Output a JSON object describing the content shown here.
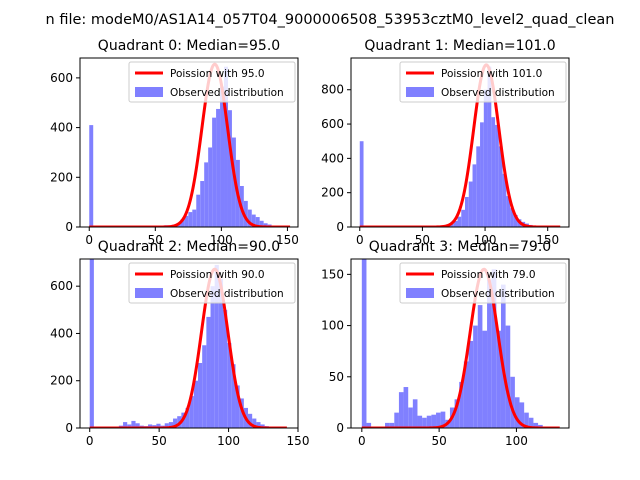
{
  "figure_title": "n file: modeM0/AS1A14_057T04_9000006508_53953cztM0_level2_quad_clean",
  "colors": {
    "hist": "#8080ff",
    "curve": "#ff0000"
  },
  "chart_data": [
    {
      "type": "histogram_with_line",
      "title": "Quadrant 0: Median=95.0",
      "median": 95.0,
      "xlim": [
        -7,
        158
      ],
      "ylim": [
        0,
        680
      ],
      "xticks": [
        0,
        50,
        100,
        150
      ],
      "yticks": [
        0,
        200,
        400,
        600
      ],
      "legend": {
        "position": "top-right",
        "line_label": "Poission with 95.0",
        "hist_label": "Observed distribution"
      },
      "bin_width": 3,
      "bars": [
        [
          0,
          410
        ],
        [
          42,
          5
        ],
        [
          45,
          3
        ],
        [
          48,
          5
        ],
        [
          51,
          4
        ],
        [
          54,
          6
        ],
        [
          57,
          7
        ],
        [
          60,
          6
        ],
        [
          63,
          10
        ],
        [
          66,
          15
        ],
        [
          69,
          30
        ],
        [
          72,
          45
        ],
        [
          75,
          60
        ],
        [
          78,
          70
        ],
        [
          81,
          130
        ],
        [
          84,
          185
        ],
        [
          87,
          260
        ],
        [
          90,
          320
        ],
        [
          93,
          440
        ],
        [
          96,
          475
        ],
        [
          99,
          565
        ],
        [
          102,
          645
        ],
        [
          105,
          470
        ],
        [
          108,
          360
        ],
        [
          111,
          270
        ],
        [
          114,
          165
        ],
        [
          117,
          105
        ],
        [
          120,
          70
        ],
        [
          123,
          50
        ],
        [
          126,
          40
        ],
        [
          129,
          25
        ],
        [
          132,
          15
        ],
        [
          135,
          10
        ],
        [
          138,
          5
        ],
        [
          141,
          4
        ],
        [
          144,
          3
        ],
        [
          147,
          2
        ],
        [
          150,
          1
        ]
      ],
      "curve": {
        "x_max": 152,
        "peak": 655
      }
    },
    {
      "type": "histogram_with_line",
      "title": "Quadrant 1: Median=101.0",
      "median": 101.0,
      "xlim": [
        -7,
        167
      ],
      "ylim": [
        0,
        985
      ],
      "xticks": [
        0,
        50,
        100,
        150
      ],
      "yticks": [
        0,
        200,
        400,
        600,
        800
      ],
      "legend": {
        "position": "top-right",
        "line_label": "Poission with 101.0",
        "hist_label": "Observed distribution"
      },
      "bin_width": 3,
      "bars": [
        [
          0,
          500
        ],
        [
          60,
          5
        ],
        [
          63,
          8
        ],
        [
          66,
          10
        ],
        [
          69,
          15
        ],
        [
          72,
          25
        ],
        [
          75,
          35
        ],
        [
          78,
          60
        ],
        [
          81,
          100
        ],
        [
          84,
          175
        ],
        [
          87,
          265
        ],
        [
          90,
          365
        ],
        [
          93,
          470
        ],
        [
          96,
          610
        ],
        [
          99,
          800
        ],
        [
          102,
          935
        ],
        [
          105,
          640
        ],
        [
          108,
          595
        ],
        [
          111,
          470
        ],
        [
          114,
          310
        ],
        [
          117,
          180
        ],
        [
          120,
          110
        ],
        [
          123,
          70
        ],
        [
          126,
          45
        ],
        [
          129,
          30
        ],
        [
          132,
          20
        ],
        [
          135,
          12
        ],
        [
          138,
          8
        ],
        [
          141,
          5
        ],
        [
          144,
          3
        ]
      ],
      "curve": {
        "x_max": 160,
        "peak": 945
      }
    },
    {
      "type": "histogram_with_line",
      "title": "Quadrant 2: Median=90.0",
      "median": 90.0,
      "xlim": [
        -7,
        150
      ],
      "ylim": [
        0,
        715
      ],
      "xticks": [
        0,
        50,
        100,
        150
      ],
      "yticks": [
        0,
        200,
        400,
        600
      ],
      "legend": {
        "position": "top-right",
        "line_label": "Poission with 90.0",
        "hist_label": "Observed distribution"
      },
      "bin_width": 3,
      "bars": [
        [
          0,
          715
        ],
        [
          21,
          10
        ],
        [
          24,
          25
        ],
        [
          27,
          15
        ],
        [
          30,
          30
        ],
        [
          33,
          20
        ],
        [
          36,
          10
        ],
        [
          39,
          8
        ],
        [
          42,
          15
        ],
        [
          45,
          12
        ],
        [
          48,
          18
        ],
        [
          51,
          10
        ],
        [
          54,
          20
        ],
        [
          57,
          25
        ],
        [
          60,
          40
        ],
        [
          63,
          50
        ],
        [
          66,
          65
        ],
        [
          69,
          85
        ],
        [
          72,
          135
        ],
        [
          75,
          200
        ],
        [
          78,
          275
        ],
        [
          81,
          350
        ],
        [
          84,
          470
        ],
        [
          87,
          600
        ],
        [
          90,
          690
        ],
        [
          93,
          630
        ],
        [
          96,
          500
        ],
        [
          99,
          360
        ],
        [
          102,
          270
        ],
        [
          105,
          180
        ],
        [
          108,
          125
        ],
        [
          111,
          85
        ],
        [
          114,
          60
        ],
        [
          117,
          40
        ],
        [
          120,
          25
        ],
        [
          123,
          15
        ],
        [
          126,
          8
        ],
        [
          129,
          5
        ]
      ],
      "curve": {
        "x_max": 142,
        "peak": 672
      }
    },
    {
      "type": "histogram_with_line",
      "title": "Quadrant 3: Median=79.0",
      "median": 79.0,
      "xlim": [
        -7,
        134
      ],
      "ylim": [
        0,
        165
      ],
      "xticks": [
        0,
        50,
        100
      ],
      "yticks": [
        0,
        50,
        100,
        150
      ],
      "legend": {
        "position": "top-right",
        "line_label": "Poission with 79.0",
        "hist_label": "Observed distribution"
      },
      "bin_width": 3,
      "bars": [
        [
          0,
          165
        ],
        [
          3,
          5
        ],
        [
          15,
          5
        ],
        [
          18,
          5
        ],
        [
          21,
          15
        ],
        [
          24,
          35
        ],
        [
          27,
          40
        ],
        [
          30,
          20
        ],
        [
          33,
          28
        ],
        [
          36,
          12
        ],
        [
          39,
          10
        ],
        [
          42,
          12
        ],
        [
          45,
          13
        ],
        [
          48,
          15
        ],
        [
          51,
          16
        ],
        [
          54,
          8
        ],
        [
          57,
          20
        ],
        [
          60,
          28
        ],
        [
          63,
          45
        ],
        [
          66,
          65
        ],
        [
          69,
          85
        ],
        [
          72,
          100
        ],
        [
          75,
          120
        ],
        [
          78,
          95
        ],
        [
          81,
          145
        ],
        [
          84,
          155
        ],
        [
          87,
          95
        ],
        [
          90,
          140
        ],
        [
          93,
          100
        ],
        [
          96,
          50
        ],
        [
          99,
          30
        ],
        [
          102,
          25
        ],
        [
          105,
          15
        ],
        [
          108,
          10
        ],
        [
          111,
          5
        ],
        [
          114,
          3
        ]
      ],
      "curve": {
        "x_max": 128,
        "peak": 155
      }
    }
  ]
}
